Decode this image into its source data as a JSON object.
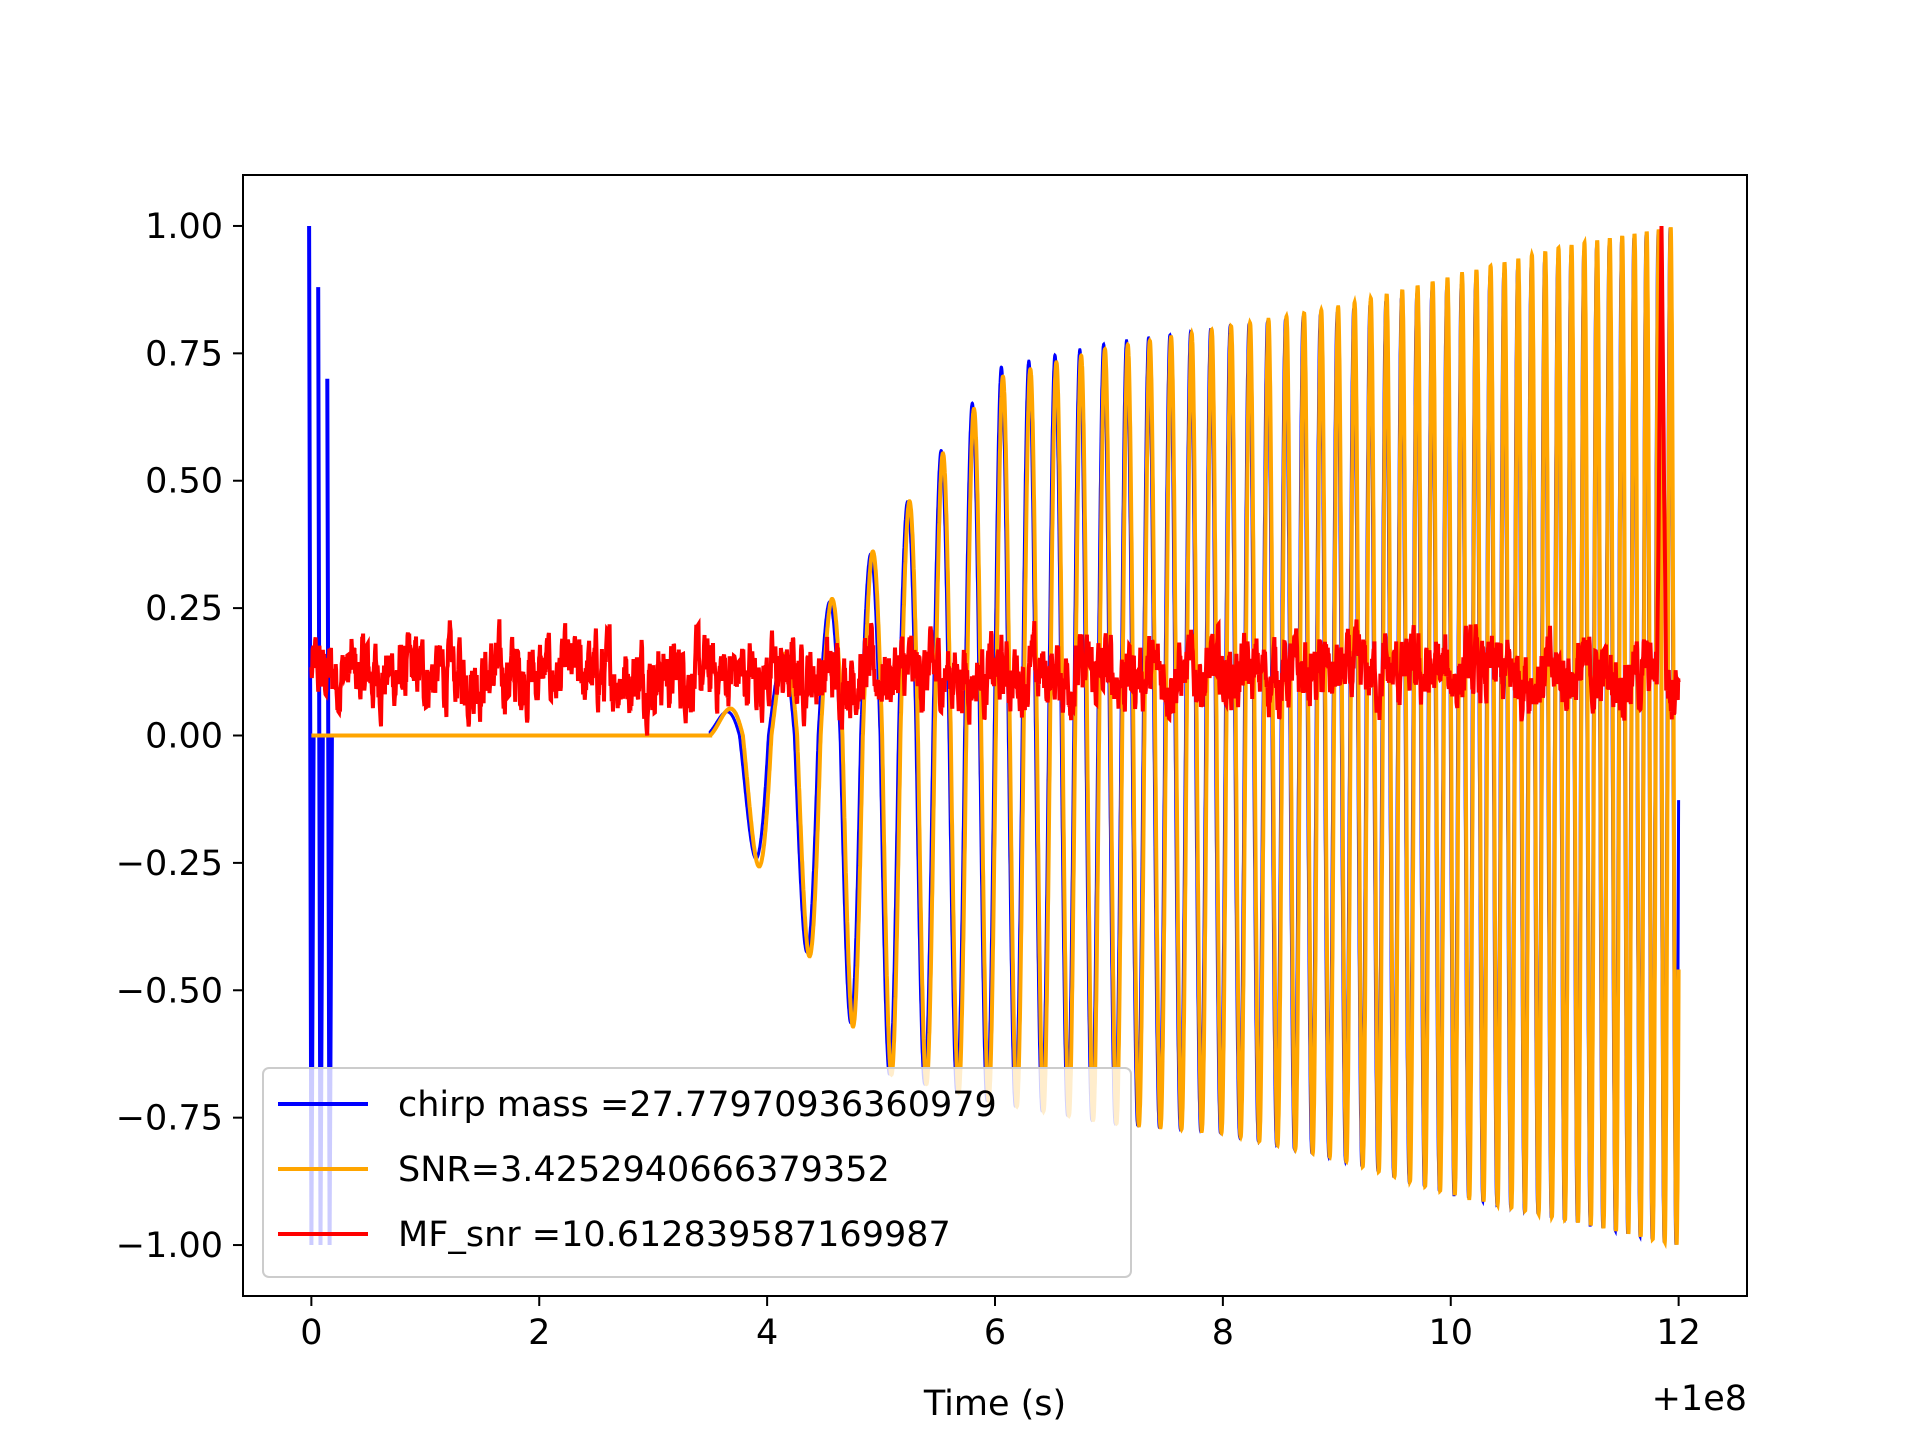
{
  "chart_data": {
    "type": "line",
    "title": "",
    "xlabel": "Time (s)",
    "ylabel": "",
    "x_offset_label": "+1e8",
    "xlim": [
      -0.6,
      12.6
    ],
    "ylim": [
      -1.1,
      1.1
    ],
    "x_ticks": [
      0,
      2,
      4,
      6,
      8,
      10,
      12
    ],
    "x_tick_labels": [
      "0",
      "2",
      "4",
      "6",
      "8",
      "10",
      "12"
    ],
    "y_ticks": [
      1.0,
      0.75,
      0.5,
      0.25,
      0.0,
      -0.25,
      -0.5,
      -0.75,
      -1.0
    ],
    "y_tick_labels": [
      "1.00",
      "0.75",
      "0.50",
      "0.25",
      "0.00",
      "−0.25",
      "−0.50",
      "−0.75",
      "−1.00"
    ],
    "grid": false,
    "legend_position": "lower-left",
    "series": [
      {
        "name": "chirp mass =27.77970936360979",
        "color": "#0000ff",
        "description_points": {
          "early_spike_x": [
            0.0,
            0.08,
            0.16
          ],
          "early_spike_peak": [
            1.0,
            0.88,
            0.7
          ],
          "quiet_until": 3.5,
          "envelope_x": [
            3.5,
            4.0,
            5.0,
            6.0,
            7.0,
            8.0,
            9.0,
            10.0,
            11.0,
            12.0
          ],
          "envelope_upper": [
            0.02,
            0.12,
            0.38,
            0.72,
            0.77,
            0.8,
            0.83,
            0.88,
            0.94,
            1.0
          ],
          "envelope_lower": [
            -0.02,
            -0.3,
            -0.66,
            -0.72,
            -0.76,
            -0.78,
            -0.83,
            -0.9,
            -0.95,
            -1.0
          ]
        }
      },
      {
        "name": "SNR=3.4252940666379352",
        "color": "#ffa500",
        "description_points": {
          "quiet_until": 3.5,
          "envelope_x": [
            3.5,
            4.0,
            5.0,
            6.0,
            7.0,
            8.0,
            9.0,
            10.0,
            11.0,
            12.0
          ],
          "envelope_upper": [
            0.02,
            0.12,
            0.38,
            0.7,
            0.76,
            0.8,
            0.84,
            0.9,
            0.96,
            1.0
          ],
          "envelope_lower": [
            -0.02,
            -0.3,
            -0.66,
            -0.72,
            -0.76,
            -0.78,
            -0.83,
            -0.9,
            -0.95,
            -1.0
          ]
        }
      },
      {
        "name": "MF_snr =10.612839587169987",
        "color": "#ff0000",
        "description_points": {
          "noise_band": [
            0.0,
            0.3
          ],
          "mean_level": 0.12,
          "peak_x": 11.85,
          "peak_y": 1.0
        }
      }
    ]
  }
}
